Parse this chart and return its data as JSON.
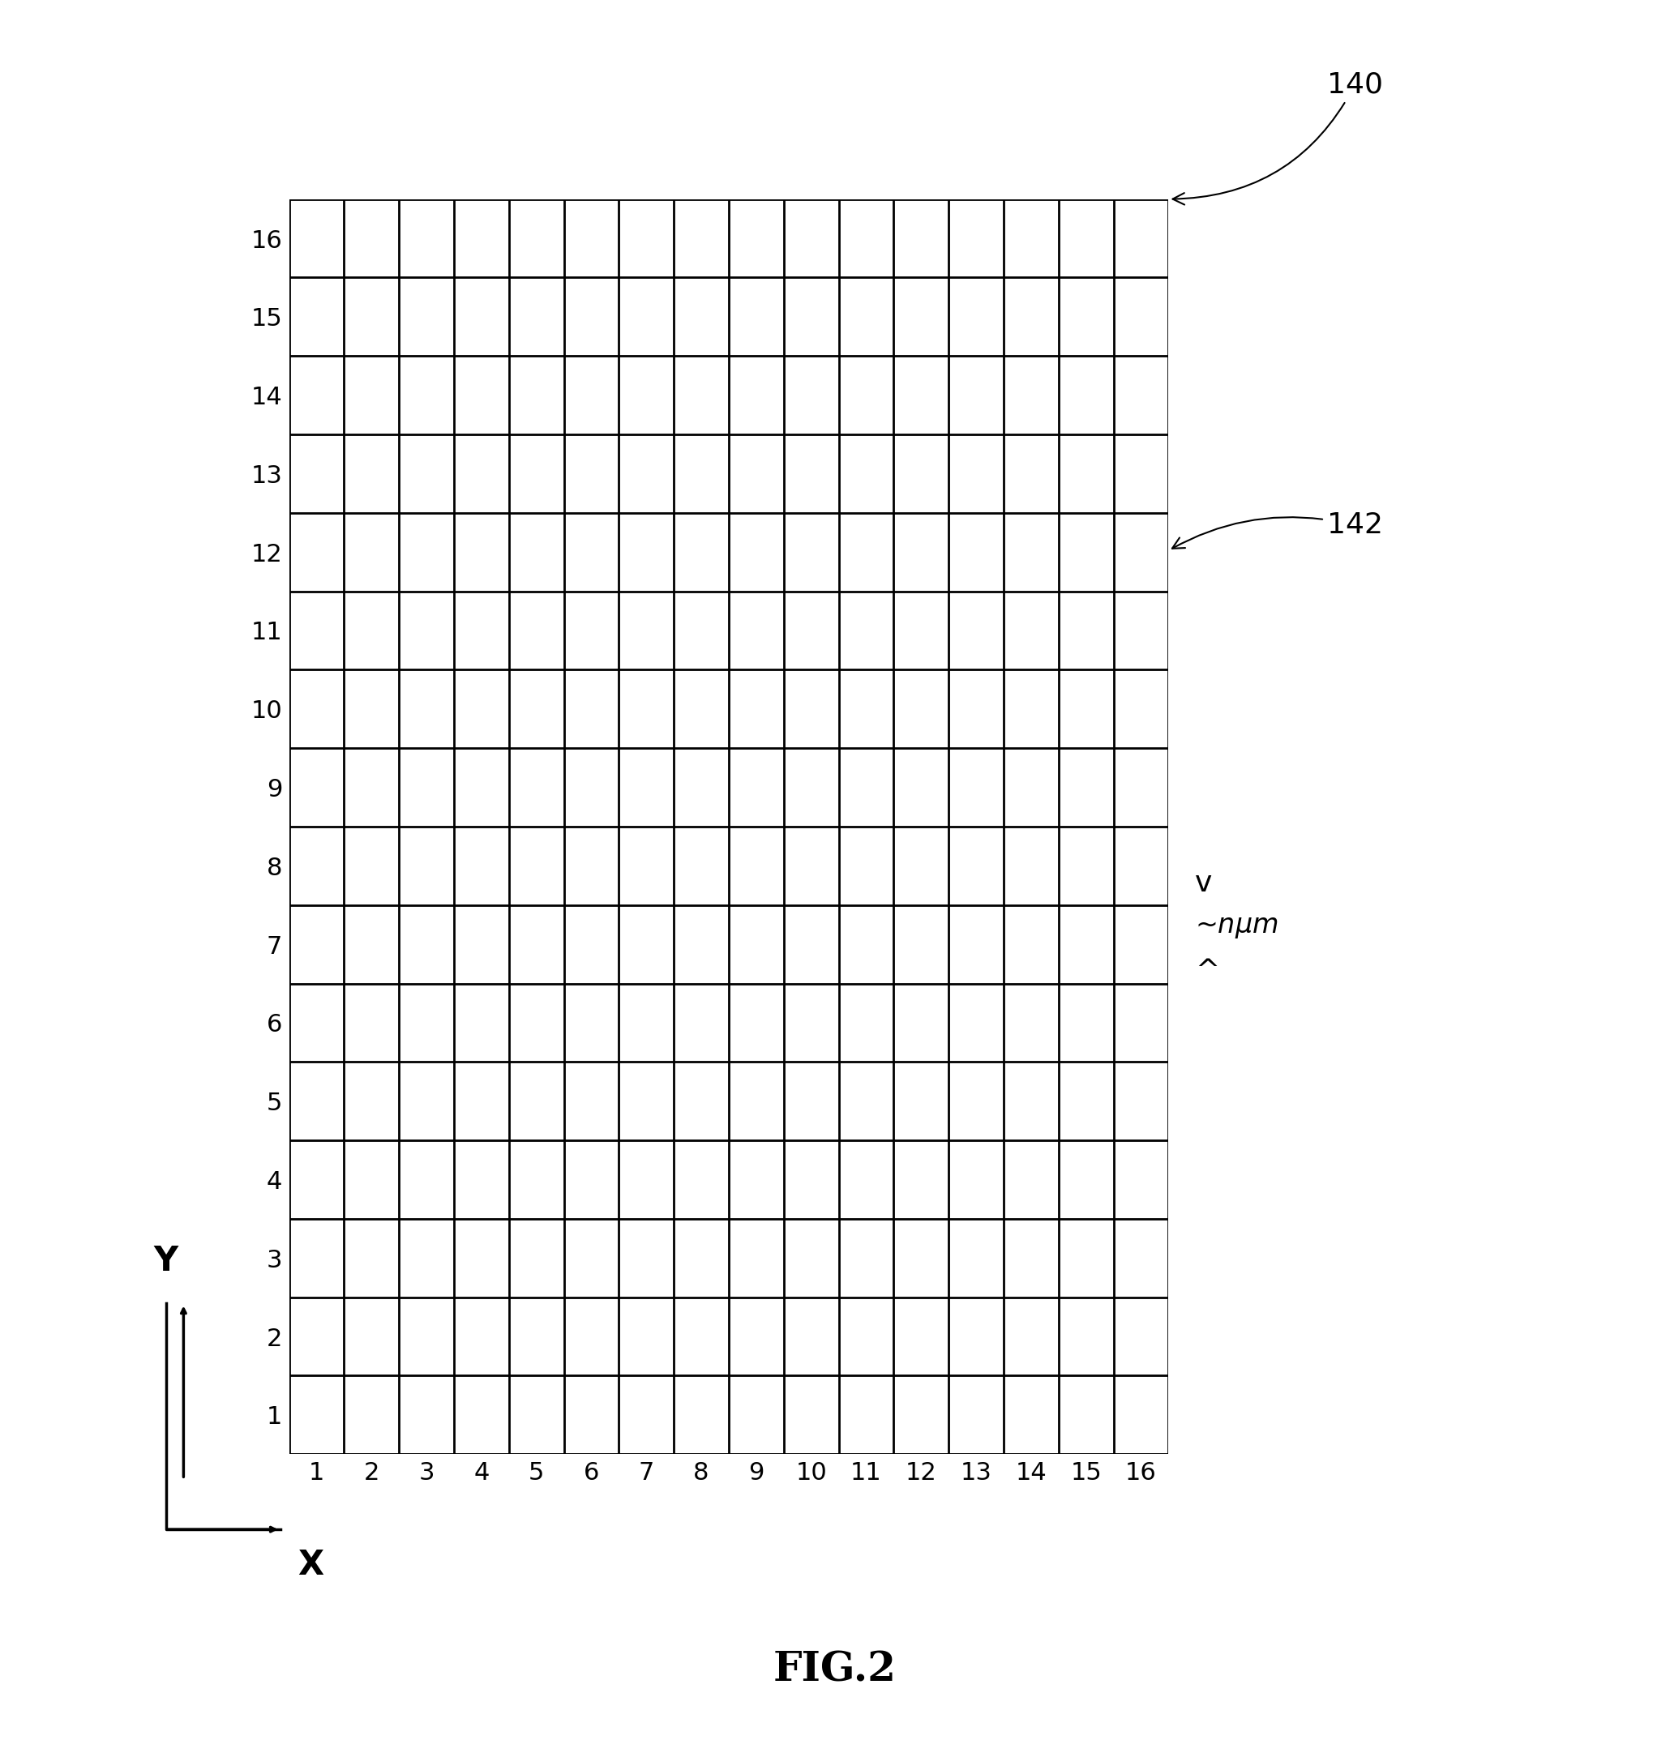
{
  "grid_n": 16,
  "bg_color": "#ffffff",
  "grid_color": "#000000",
  "grid_linewidth": 2.0,
  "label_140": "140",
  "label_142": "142",
  "label_nμm": "~nμm",
  "title": "FIG.2",
  "x_ticks": [
    1,
    2,
    3,
    4,
    5,
    6,
    7,
    8,
    9,
    10,
    11,
    12,
    13,
    14,
    15,
    16
  ],
  "y_ticks": [
    1,
    2,
    3,
    4,
    5,
    6,
    7,
    8,
    9,
    10,
    11,
    12,
    13,
    14,
    15,
    16
  ],
  "tick_fontsize": 22,
  "annot_fontsize": 26,
  "title_fontsize": 36,
  "fig_label_fontsize": 30
}
